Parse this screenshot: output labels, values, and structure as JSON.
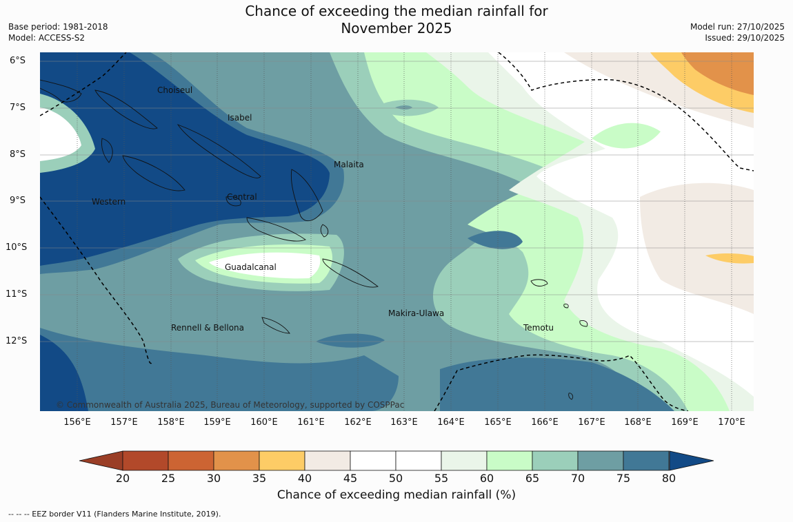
{
  "title_line1": "Chance of exceeding the median rainfall for",
  "title_line2": "November 2025",
  "base_period": "Base period: 1981-2018",
  "model": "Model: ACCESS-S2",
  "model_run": "Model run: 27/10/2025",
  "issued": "Issued: 29/10/2025",
  "lat_labels": [
    "6°S",
    "7°S",
    "8°S",
    "9°S",
    "10°S",
    "11°S",
    "12°S"
  ],
  "lon_labels": [
    "156°E",
    "157°E",
    "158°E",
    "159°E",
    "160°E",
    "161°E",
    "162°E",
    "163°E",
    "164°E",
    "165°E",
    "166°E",
    "167°E",
    "168°E",
    "169°E",
    "170°E"
  ],
  "places": {
    "choiseul": "Choiseul",
    "isabel": "Isabel",
    "malaita": "Malaita",
    "western": "Western",
    "central": "Central",
    "guadalcanal": "Guadalcanal",
    "makira": "Makira-Ulawa",
    "rennell": "Rennell & Bellona",
    "temotu": "Temotu"
  },
  "copyright": "© Commonwealth of Australia 2025, Bureau of Meteorology, supported by COSPPac",
  "colorbar": {
    "ticks": [
      "20",
      "25",
      "30",
      "35",
      "40",
      "45",
      "50",
      "55",
      "60",
      "65",
      "70",
      "75",
      "80"
    ],
    "colors": [
      "#b2492a",
      "#cc6433",
      "#e2924a",
      "#fdcc66",
      "#f2ebe4",
      "#ffffff",
      "#ffffff",
      "#eaf5e9",
      "#c9fcc7",
      "#9bcfba",
      "#6e9ea3",
      "#417896"
    ],
    "under_color": "#9a3e26",
    "over_color": "#124a86",
    "label": "Chance of exceeding median rainfall (%)"
  },
  "footnote": "--  --  -- EEZ border V11 (Flanders Marine Institute, 2019)."
}
